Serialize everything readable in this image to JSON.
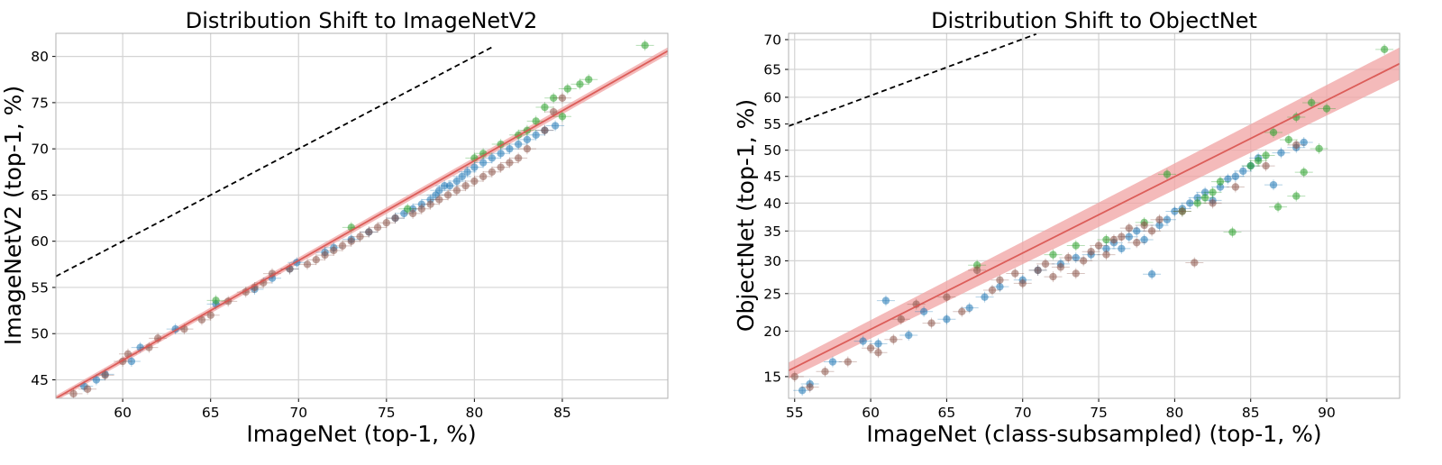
{
  "chart_data": [
    {
      "type": "scatter",
      "title": "Distribution Shift to ImageNetV2",
      "xlabel": "ImageNet (top-1, %)",
      "ylabel": "ImageNetV2 (top-1, %)",
      "xlim": [
        56.2,
        91.0
      ],
      "ylim": [
        43.0,
        82.5
      ],
      "xscale": "linear",
      "yscale": "linear",
      "xticks": [
        60,
        65,
        70,
        75,
        80,
        85
      ],
      "yticks": [
        45,
        50,
        55,
        60,
        65,
        70,
        75,
        80
      ],
      "grid": true,
      "legend": "none",
      "reference_line": {
        "style": "dashed",
        "color": "#000000",
        "x": [
          56.2,
          81.1
        ],
        "y": [
          56.2,
          81.1
        ]
      },
      "fit_line": {
        "color": "#d9534f",
        "band_color": "#f0a3a3",
        "x": [
          56.2,
          91.0
        ],
        "y": [
          43.0,
          80.6
        ]
      },
      "series": [
        {
          "color": "#1f77b4",
          "x": [
            57.8,
            58.5,
            59.0,
            60.5,
            61.0,
            63.0,
            65.3,
            67.5,
            68.5,
            69.5,
            69.9,
            71.5,
            72.0,
            73.0,
            74.0,
            75.5,
            76.0,
            76.5,
            77.0,
            77.5,
            77.8,
            78.0,
            78.3,
            78.6,
            79.0,
            79.3,
            79.6,
            80.0,
            80.5,
            81.0,
            81.5,
            82.0,
            82.5,
            83.0,
            83.5,
            84.0,
            84.6
          ],
          "y": [
            44.3,
            45.0,
            45.6,
            47.0,
            48.5,
            50.5,
            53.2,
            54.8,
            56.0,
            57.0,
            57.7,
            58.8,
            59.3,
            60.2,
            61.0,
            62.5,
            63.0,
            63.5,
            64.0,
            64.5,
            65.0,
            65.5,
            66.0,
            66.0,
            66.5,
            67.0,
            67.5,
            68.0,
            68.5,
            69.0,
            69.5,
            70.0,
            70.5,
            71.0,
            71.5,
            72.0,
            72.5
          ]
        },
        {
          "color": "#2ca02c",
          "x": [
            65.3,
            73.0,
            76.2,
            80.0,
            80.5,
            81.5,
            82.5,
            83.0,
            83.5,
            84.0,
            84.5,
            85.0,
            85.3,
            86.0,
            86.5,
            89.7
          ],
          "y": [
            53.6,
            61.5,
            63.5,
            69.0,
            69.5,
            70.5,
            71.5,
            72.0,
            73.0,
            74.5,
            75.5,
            73.5,
            76.5,
            77.0,
            77.5,
            81.2
          ]
        },
        {
          "color": "#8c564b",
          "x": [
            57.2,
            58.0,
            59.0,
            60.0,
            60.3,
            61.5,
            62.0,
            63.5,
            64.5,
            65.0,
            66.0,
            67.0,
            67.5,
            68.0,
            68.5,
            69.5,
            70.5,
            71.0,
            71.5,
            72.0,
            72.5,
            73.0,
            73.5,
            74.0,
            74.5,
            75.0,
            75.5,
            76.5,
            77.0,
            77.5,
            78.0,
            78.5,
            79.0,
            79.5,
            80.0,
            80.5,
            81.0,
            81.5,
            82.0,
            82.5,
            83.0,
            84.0,
            84.5,
            85.0
          ],
          "y": [
            43.5,
            44.0,
            45.5,
            47.0,
            47.8,
            48.5,
            49.5,
            50.5,
            51.5,
            52.0,
            53.5,
            54.5,
            55.0,
            55.5,
            56.5,
            57.0,
            57.5,
            58.0,
            58.5,
            59.0,
            59.5,
            60.0,
            60.5,
            61.0,
            61.5,
            62.0,
            62.5,
            63.0,
            63.5,
            64.0,
            64.5,
            65.0,
            65.5,
            66.0,
            66.5,
            67.0,
            67.5,
            68.0,
            68.5,
            69.0,
            70.0,
            72.0,
            74.0,
            75.5
          ]
        }
      ]
    },
    {
      "type": "scatter",
      "title": "Distribution Shift to ObjectNet",
      "xlabel": "ImageNet (class-subsampled) (top-1, %)",
      "ylabel": "ObjectNet (top-1, %)",
      "xlim": [
        54.6,
        94.8
      ],
      "ylim": [
        13.0,
        71.0
      ],
      "xscale": "linear",
      "yscale": "logit",
      "xticks": [
        55,
        60,
        65,
        70,
        75,
        80,
        85,
        90
      ],
      "yticks": [
        15,
        20,
        25,
        30,
        35,
        40,
        45,
        50,
        55,
        60,
        65,
        70
      ],
      "grid": true,
      "legend": "none",
      "reference_line": {
        "style": "dashed",
        "color": "#000000",
        "x": [
          54.6,
          70.9
        ],
        "y": [
          54.6,
          70.9
        ]
      },
      "fit_line": {
        "color": "#d9534f",
        "band_color": "#f0a3a3",
        "x": [
          54.6,
          94.8
        ],
        "y": [
          15.6,
          66.0
        ]
      },
      "series": [
        {
          "color": "#1f77b4",
          "x": [
            55.5,
            56.0,
            57.5,
            59.5,
            60.5,
            61.0,
            62.5,
            63.5,
            65.0,
            66.5,
            67.5,
            68.5,
            70.0,
            71.0,
            72.5,
            73.5,
            74.5,
            75.5,
            76.0,
            76.5,
            77.0,
            77.5,
            78.0,
            78.5,
            79.0,
            79.5,
            80.0,
            80.5,
            81.0,
            81.5,
            82.0,
            82.5,
            83.0,
            83.5,
            84.0,
            84.5,
            85.0,
            85.5,
            86.5,
            87.0,
            88.0,
            88.5
          ],
          "y": [
            13.7,
            14.3,
            16.5,
            18.8,
            18.5,
            24.0,
            19.5,
            22.5,
            21.5,
            23.0,
            24.5,
            26.0,
            27.0,
            28.5,
            29.5,
            30.5,
            31.0,
            32.0,
            33.0,
            32.0,
            34.0,
            35.0,
            33.5,
            27.9,
            36.0,
            37.0,
            38.5,
            39.0,
            40.0,
            41.0,
            42.0,
            40.5,
            43.0,
            44.5,
            45.0,
            46.0,
            47.0,
            48.5,
            43.4,
            49.5,
            50.5,
            51.5
          ]
        },
        {
          "color": "#2ca02c",
          "x": [
            67.0,
            72.0,
            73.5,
            75.5,
            78.0,
            79.5,
            80.5,
            81.5,
            82.0,
            82.5,
            83.0,
            83.8,
            85.0,
            85.5,
            86.0,
            86.5,
            86.8,
            87.5,
            88.0,
            88.0,
            88.5,
            89.0,
            89.5,
            90.0,
            93.8
          ],
          "y": [
            29.3,
            31.0,
            32.5,
            33.5,
            36.5,
            45.4,
            38.5,
            40.0,
            41.0,
            42.0,
            44.0,
            34.8,
            47.0,
            48.0,
            49.0,
            53.4,
            39.3,
            52.0,
            56.3,
            41.3,
            45.8,
            59.0,
            50.3,
            57.9,
            68.4
          ]
        },
        {
          "color": "#8c564b",
          "x": [
            55.0,
            56.0,
            57.0,
            58.5,
            60.0,
            60.5,
            61.5,
            62.0,
            63.0,
            64.0,
            65.0,
            66.0,
            67.0,
            68.0,
            68.5,
            69.5,
            70.0,
            71.0,
            71.5,
            72.0,
            72.5,
            73.0,
            73.5,
            74.0,
            74.5,
            75.0,
            75.5,
            76.0,
            76.5,
            77.0,
            77.5,
            78.0,
            78.5,
            79.0,
            80.5,
            81.3,
            82.5,
            84.0,
            86.0,
            88.0
          ],
          "y": [
            15.0,
            14.0,
            15.5,
            16.5,
            18.0,
            17.5,
            19.0,
            21.5,
            23.5,
            21.0,
            24.5,
            22.5,
            28.5,
            25.5,
            27.0,
            28.0,
            26.5,
            28.5,
            29.5,
            27.5,
            29.0,
            30.5,
            28.0,
            30.0,
            31.5,
            32.5,
            31.0,
            33.5,
            34.0,
            35.5,
            33.0,
            36.0,
            35.0,
            37.0,
            38.5,
            29.7,
            40.0,
            43.0,
            47.0,
            51.0
          ]
        }
      ]
    }
  ]
}
